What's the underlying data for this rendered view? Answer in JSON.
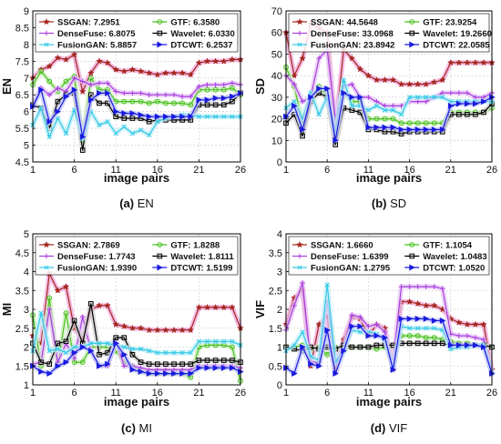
{
  "panels": [
    {
      "id": "a",
      "caption_letter": "(a)",
      "caption_text": "EN",
      "type": "line",
      "xlabel": "image pairs",
      "ylabel": "EN",
      "xlim": [
        1,
        26
      ],
      "ylim": [
        4.5,
        9
      ],
      "xticks": [
        1,
        6,
        11,
        16,
        21,
        26
      ],
      "yticks": [
        "4.5",
        "5",
        "5.5",
        "6",
        "6.5",
        "7",
        "7.5",
        "8",
        "8.5",
        "9"
      ],
      "grid": true,
      "legend": [
        {
          "text": "SSGAN: 7.2951",
          "series": 0
        },
        {
          "text": "GTF: 6.3580",
          "series": 1
        },
        {
          "text": "DenseFuse: 6.8075",
          "series": 2
        },
        {
          "text": "Wavelet: 6.0330",
          "series": 3
        },
        {
          "text": "FusionGAN: 5.8857",
          "series": 4
        },
        {
          "text": "DTCWT: 6.2537",
          "series": 5
        }
      ],
      "series": [
        {
          "values": [
            7.0,
            7.25,
            7.35,
            7.6,
            7.55,
            7.7,
            6.6,
            7.15,
            7.5,
            7.45,
            7.25,
            7.2,
            7.25,
            7.2,
            7.15,
            7.1,
            7.15,
            7.15,
            7.15,
            7.1,
            7.45,
            7.5,
            7.5,
            7.5,
            7.55,
            7.55
          ]
        },
        {
          "values": [
            6.8,
            7.2,
            6.9,
            6.6,
            6.9,
            7.05,
            5.1,
            7.0,
            6.65,
            6.65,
            6.3,
            6.3,
            6.3,
            6.3,
            6.25,
            6.3,
            6.25,
            6.25,
            6.25,
            6.2,
            6.65,
            6.65,
            6.65,
            6.65,
            6.7,
            6.5
          ]
        },
        {
          "values": [
            6.2,
            6.7,
            6.5,
            6.7,
            6.6,
            7.0,
            6.9,
            6.8,
            6.85,
            6.85,
            6.6,
            6.55,
            6.55,
            6.55,
            6.5,
            6.5,
            6.5,
            6.5,
            6.45,
            6.45,
            6.75,
            6.8,
            6.8,
            6.8,
            6.85,
            6.8
          ]
        },
        {
          "values": [
            6.2,
            6.1,
            5.5,
            6.3,
            6.5,
            6.55,
            4.85,
            6.5,
            6.25,
            6.25,
            5.85,
            5.8,
            5.8,
            5.8,
            5.7,
            5.75,
            5.75,
            5.75,
            5.75,
            5.75,
            6.2,
            6.2,
            6.2,
            6.2,
            6.3,
            6.55
          ]
        },
        {
          "values": [
            5.6,
            6.1,
            5.25,
            5.8,
            5.35,
            6.05,
            5.2,
            6.0,
            5.6,
            5.7,
            5.35,
            5.55,
            5.35,
            5.45,
            5.3,
            5.7,
            5.8,
            5.85,
            5.9,
            5.9,
            5.85,
            5.85,
            5.85,
            5.85,
            5.85,
            5.85
          ]
        },
        {
          "values": [
            6.15,
            6.65,
            5.7,
            6.0,
            6.45,
            6.65,
            5.25,
            6.35,
            6.55,
            6.55,
            6.0,
            5.95,
            5.95,
            5.9,
            5.85,
            5.85,
            5.85,
            5.85,
            5.85,
            5.85,
            6.35,
            6.35,
            6.4,
            6.4,
            6.45,
            6.55
          ]
        }
      ]
    },
    {
      "id": "b",
      "caption_letter": "(b)",
      "caption_text": "SD",
      "type": "line",
      "xlabel": "image pairs",
      "ylabel": "SD",
      "xlim": [
        1,
        26
      ],
      "ylim": [
        0,
        70
      ],
      "xticks": [
        1,
        6,
        11,
        16,
        21,
        26
      ],
      "yticks": [
        "0",
        "10",
        "20",
        "30",
        "40",
        "50",
        "60",
        "70"
      ],
      "grid": true,
      "legend": [
        {
          "text": "SSGAN: 44.5648",
          "series": 0
        },
        {
          "text": "GTF: 23.9254",
          "series": 1
        },
        {
          "text": "DenseFuse: 33.0968",
          "series": 2
        },
        {
          "text": "Wavelet: 19.2660",
          "series": 3
        },
        {
          "text": "FusionGAN: 23.8942",
          "series": 4
        },
        {
          "text": "DTCWT: 22.0585",
          "series": 5
        }
      ],
      "series": [
        {
          "values": [
            60,
            40,
            48,
            64,
            62,
            60,
            15,
            52,
            48,
            43,
            40,
            38,
            38,
            38,
            36,
            36,
            36,
            36,
            37,
            38,
            46,
            46,
            46,
            46,
            46,
            46
          ]
        },
        {
          "values": [
            44,
            35,
            18,
            30,
            35,
            30,
            12,
            32,
            28,
            28,
            20,
            20,
            20,
            20,
            18,
            18,
            18,
            18,
            18,
            18,
            23,
            23,
            23,
            23,
            23,
            25
          ]
        },
        {
          "values": [
            40,
            36,
            28,
            30,
            48,
            52,
            20,
            35,
            36,
            30,
            30,
            28,
            26,
            26,
            26,
            28,
            28,
            28,
            30,
            32,
            32,
            32,
            32,
            30,
            30,
            32
          ]
        },
        {
          "values": [
            18,
            22,
            12,
            28,
            32,
            30,
            8,
            25,
            24,
            23,
            15,
            15,
            14,
            14,
            13,
            14,
            14,
            14,
            14,
            14,
            22,
            22,
            22,
            22,
            23,
            27
          ]
        },
        {
          "values": [
            25,
            28,
            20,
            32,
            22,
            30,
            14,
            38,
            26,
            26,
            24,
            26,
            24,
            24,
            22,
            30,
            30,
            30,
            30,
            30,
            28,
            28,
            28,
            28,
            28,
            28
          ]
        },
        {
          "values": [
            21,
            26,
            15,
            30,
            34,
            34,
            10,
            32,
            30,
            30,
            16,
            16,
            16,
            16,
            15,
            15,
            15,
            15,
            15,
            15,
            26,
            27,
            27,
            27,
            28,
            30
          ]
        }
      ]
    },
    {
      "id": "c",
      "caption_letter": "(c)",
      "caption_text": "MI",
      "type": "line",
      "xlabel": "image pairs",
      "ylabel": "MI",
      "xlim": [
        1,
        26
      ],
      "ylim": [
        1,
        5
      ],
      "xticks": [
        1,
        6,
        11,
        16,
        21,
        26
      ],
      "yticks": [
        "1",
        "1.5",
        "2",
        "2.5",
        "3",
        "3.5",
        "4",
        "4.5",
        "5"
      ],
      "grid": true,
      "legend": [
        {
          "text": "SSGAN: 2.7869",
          "series": 0
        },
        {
          "text": "GTF: 1.8288",
          "series": 1
        },
        {
          "text": "DenseFuse: 1.7743",
          "series": 2
        },
        {
          "text": "Wavelet: 1.8111",
          "series": 3
        },
        {
          "text": "FusionGAN: 1.9390",
          "series": 4
        },
        {
          "text": "DTCWT: 1.5199",
          "series": 5
        }
      ],
      "series": [
        {
          "values": [
            2.3,
            2.1,
            3.95,
            3.5,
            3.6,
            2.5,
            2.2,
            3.0,
            3.1,
            3.1,
            2.6,
            2.55,
            2.5,
            2.5,
            2.45,
            2.45,
            2.45,
            2.45,
            2.45,
            2.45,
            3.05,
            3.05,
            3.05,
            3.05,
            3.05,
            2.5
          ]
        },
        {
          "values": [
            2.85,
            1.5,
            3.3,
            1.5,
            2.9,
            1.6,
            1.6,
            2.0,
            2.0,
            2.0,
            1.9,
            1.6,
            1.5,
            1.35,
            1.3,
            1.3,
            1.3,
            1.3,
            1.3,
            1.2,
            2.0,
            2.05,
            2.05,
            2.05,
            2.0,
            1.1
          ]
        },
        {
          "values": [
            1.55,
            1.6,
            3.0,
            1.6,
            2.1,
            1.7,
            2.8,
            1.9,
            1.5,
            1.5,
            2.2,
            1.5,
            1.5,
            1.45,
            1.4,
            1.4,
            1.4,
            1.4,
            1.4,
            1.4,
            1.5,
            1.5,
            1.5,
            1.5,
            1.5,
            1.45
          ]
        },
        {
          "values": [
            2.1,
            1.6,
            1.55,
            2.1,
            2.15,
            2.7,
            2.1,
            3.15,
            1.8,
            1.85,
            2.25,
            2.25,
            1.8,
            1.6,
            1.55,
            1.55,
            1.55,
            1.55,
            1.55,
            1.55,
            1.65,
            1.65,
            1.65,
            1.65,
            1.65,
            1.6
          ]
        },
        {
          "values": [
            1.9,
            2.9,
            1.9,
            1.95,
            1.85,
            2.0,
            2.0,
            2.1,
            2.1,
            2.1,
            2.05,
            2.0,
            1.95,
            1.95,
            1.9,
            1.85,
            1.85,
            1.85,
            1.85,
            1.85,
            2.15,
            2.15,
            2.15,
            2.15,
            2.15,
            2.05
          ]
        },
        {
          "values": [
            1.5,
            1.35,
            1.3,
            1.5,
            1.6,
            1.85,
            2.0,
            1.9,
            1.5,
            1.55,
            2.1,
            1.8,
            1.4,
            1.35,
            1.3,
            1.3,
            1.3,
            1.3,
            1.3,
            1.3,
            1.45,
            1.45,
            1.45,
            1.45,
            1.45,
            1.35
          ]
        }
      ]
    },
    {
      "id": "d",
      "caption_letter": "(d)",
      "caption_text": "VIF",
      "type": "line",
      "xlabel": "image pairs",
      "ylabel": "VIF",
      "xlim": [
        1,
        26
      ],
      "ylim": [
        0,
        4
      ],
      "xticks": [
        1,
        6,
        11,
        16,
        21,
        26
      ],
      "yticks": [
        "0",
        "0.5",
        "1",
        "1.5",
        "2",
        "2.5",
        "3",
        "3.5",
        "4"
      ],
      "grid": true,
      "legend": [
        {
          "text": "SSGAN: 1.6660",
          "series": 0
        },
        {
          "text": "GTF: 1.1054",
          "series": 1
        },
        {
          "text": "DenseFuse: 1.6399",
          "series": 2
        },
        {
          "text": "Wavelet: 1.0483",
          "series": 3
        },
        {
          "text": "FusionGAN: 1.2795",
          "series": 4
        },
        {
          "text": "DTCWT: 1.0520",
          "series": 5
        }
      ],
      "series": [
        {
          "values": [
            1.6,
            2.3,
            2.5,
            0.5,
            1.6,
            1.8,
            0.4,
            1.2,
            1.8,
            1.75,
            1.3,
            1.6,
            1.5,
            0.4,
            2.2,
            2.2,
            2.15,
            2.1,
            2.1,
            2.0,
            1.75,
            1.65,
            1.6,
            1.6,
            1.6,
            0.4
          ]
        },
        {
          "values": [
            1.0,
            1.0,
            1.05,
            0.95,
            1.0,
            0.8,
            1.0,
            0.95,
            1.0,
            1.0,
            1.0,
            0.95,
            1.0,
            1.0,
            1.3,
            1.3,
            1.3,
            1.25,
            1.25,
            1.2,
            1.15,
            1.1,
            1.1,
            1.05,
            1.0,
            1.0
          ]
        },
        {
          "values": [
            1.45,
            2.1,
            2.7,
            0.6,
            0.6,
            2.2,
            0.6,
            1.0,
            1.85,
            1.8,
            1.55,
            1.6,
            1.4,
            0.6,
            2.6,
            2.6,
            2.6,
            2.6,
            2.6,
            2.55,
            1.35,
            1.3,
            1.3,
            1.25,
            1.2,
            0.3
          ]
        },
        {
          "values": [
            1.0,
            0.95,
            0.9,
            1.0,
            0.95,
            1.0,
            0.95,
            1.05,
            1.0,
            1.0,
            1.0,
            1.05,
            1.05,
            1.05,
            1.1,
            1.1,
            1.1,
            1.1,
            1.1,
            1.1,
            1.05,
            1.05,
            1.05,
            1.05,
            1.05,
            1.0
          ]
        },
        {
          "values": [
            0.9,
            1.05,
            1.4,
            0.75,
            0.65,
            2.65,
            0.6,
            0.9,
            1.45,
            1.4,
            1.4,
            1.35,
            1.2,
            0.45,
            1.55,
            1.5,
            1.5,
            1.5,
            1.5,
            1.45,
            0.95,
            1.0,
            1.0,
            1.05,
            1.05,
            0.3
          ]
        },
        {
          "values": [
            0.45,
            0.3,
            1.0,
            0.55,
            0.5,
            1.45,
            0.3,
            0.9,
            1.55,
            1.55,
            1.3,
            1.3,
            1.25,
            0.4,
            1.75,
            1.75,
            1.75,
            1.75,
            1.7,
            1.7,
            1.05,
            1.05,
            1.05,
            1.05,
            1.0,
            0.3
          ]
        }
      ]
    }
  ],
  "series_styles": [
    {
      "name": "SSGAN",
      "color": "#a3271d",
      "marker": "star",
      "band": "#f2a6dc"
    },
    {
      "name": "GTF",
      "color": "#46c01b",
      "marker": "circle",
      "band": "#cfeec0"
    },
    {
      "name": "DenseFuse",
      "color": "#a93de0",
      "marker": "plus",
      "band": "#e6c6f4"
    },
    {
      "name": "Wavelet",
      "color": "#000000",
      "marker": "square",
      "band": "#cfcfcf"
    },
    {
      "name": "FusionGAN",
      "color": "#33c8e6",
      "marker": "cross",
      "band": "#bfeff7"
    },
    {
      "name": "DTCWT",
      "color": "#1a1ae0",
      "marker": "triangle-right",
      "band": "#c3c8f7"
    }
  ]
}
